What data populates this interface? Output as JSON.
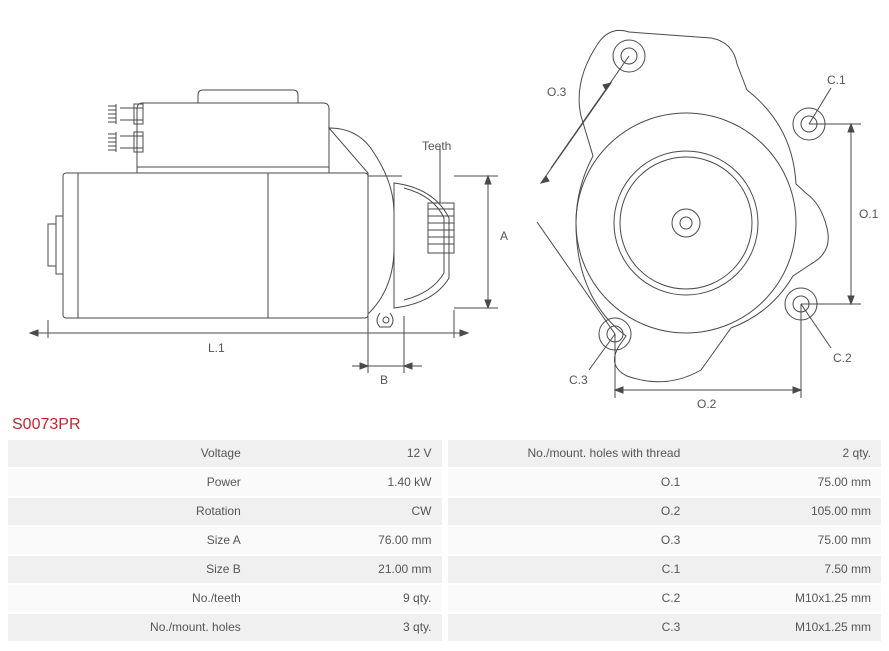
{
  "part_number": "S0073PR",
  "diagram": {
    "type": "engineering-drawing",
    "stroke_color": "#4a4a4a",
    "stroke_width": 1,
    "label_color": "#555555",
    "label_fontsize": 12,
    "background": "#ffffff",
    "side_view": {
      "labels": {
        "teeth": "Teeth",
        "L1": "L.1",
        "A": "A",
        "B": "B"
      }
    },
    "front_view": {
      "labels": {
        "O1": "O.1",
        "O2": "O.2",
        "O3": "O.3",
        "C1": "C.1",
        "C2": "C.2",
        "C3": "C.3"
      }
    }
  },
  "specs_left": [
    {
      "label": "Voltage",
      "value": "12 V"
    },
    {
      "label": "Power",
      "value": "1.40 kW"
    },
    {
      "label": "Rotation",
      "value": "CW"
    },
    {
      "label": "Size A",
      "value": "76.00 mm"
    },
    {
      "label": "Size B",
      "value": "21.00 mm"
    },
    {
      "label": "No./teeth",
      "value": "9 qty."
    },
    {
      "label": "No./mount. holes",
      "value": "3 qty."
    }
  ],
  "specs_right": [
    {
      "label": "No./mount. holes with thread",
      "value": "2 qty."
    },
    {
      "label": "O.1",
      "value": "75.00 mm"
    },
    {
      "label": "O.2",
      "value": "105.00 mm"
    },
    {
      "label": "O.3",
      "value": "75.00 mm"
    },
    {
      "label": "C.1",
      "value": "7.50 mm"
    },
    {
      "label": "C.2",
      "value": "M10x1.25 mm"
    },
    {
      "label": "C.3",
      "value": "M10x1.25 mm"
    }
  ]
}
